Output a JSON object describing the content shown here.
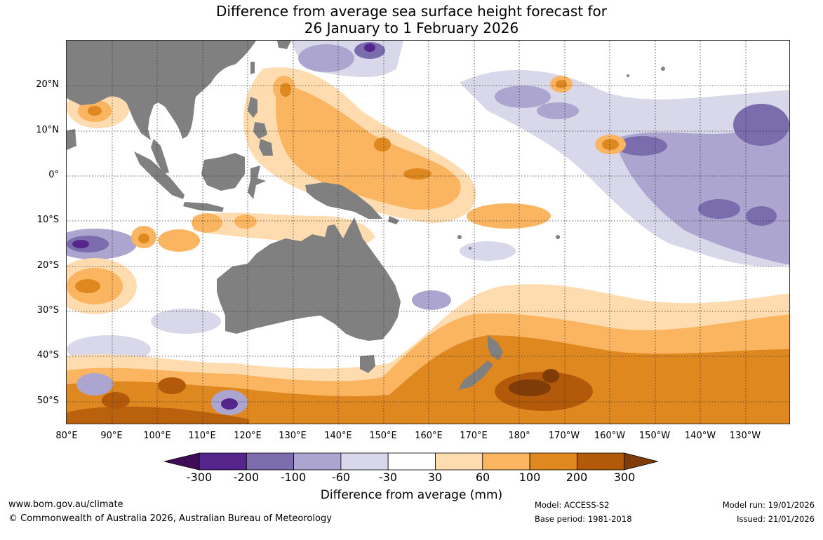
{
  "title": {
    "line1": "Difference from average sea surface height forecast for",
    "line2": "26 January to 1 February 2026"
  },
  "map": {
    "lat_labels": [
      "20°N",
      "10°N",
      "0°",
      "10°S",
      "20°S",
      "30°S",
      "40°S",
      "50°S"
    ],
    "lon_labels": [
      "80°E",
      "90°E",
      "100°E",
      "110°E",
      "120°E",
      "130°E",
      "140°E",
      "150°E",
      "160°E",
      "170°E",
      "180°",
      "170°W",
      "160°W",
      "150°W",
      "140°W",
      "130°W"
    ],
    "colors": {
      "land": "#808080",
      "ocean_neutral": "#ffffff",
      "grid": "#333333"
    }
  },
  "colorbar": {
    "title": "Difference from average (mm)",
    "ticks": [
      "-300",
      "-200",
      "-100",
      "-60",
      "-30",
      "30",
      "60",
      "100",
      "200",
      "300"
    ],
    "colors": [
      "#3f0c58",
      "#55258c",
      "#7a6cad",
      "#aba5cf",
      "#d9d8ea",
      "#ffffff",
      "#fedcb0",
      "#fbb560",
      "#e08820",
      "#b35a0a",
      "#7f3b08"
    ]
  },
  "footer": {
    "website": "www.bom.gov.au/climate",
    "copyright": "© Commonwealth of Australia 2026, Australian Bureau of Meteorology",
    "model": "Model: ACCESS-S2",
    "base_period": "Base period: 1981-2018",
    "model_run": "Model run: 19/01/2026",
    "issued": "Issued: 21/01/2026"
  }
}
